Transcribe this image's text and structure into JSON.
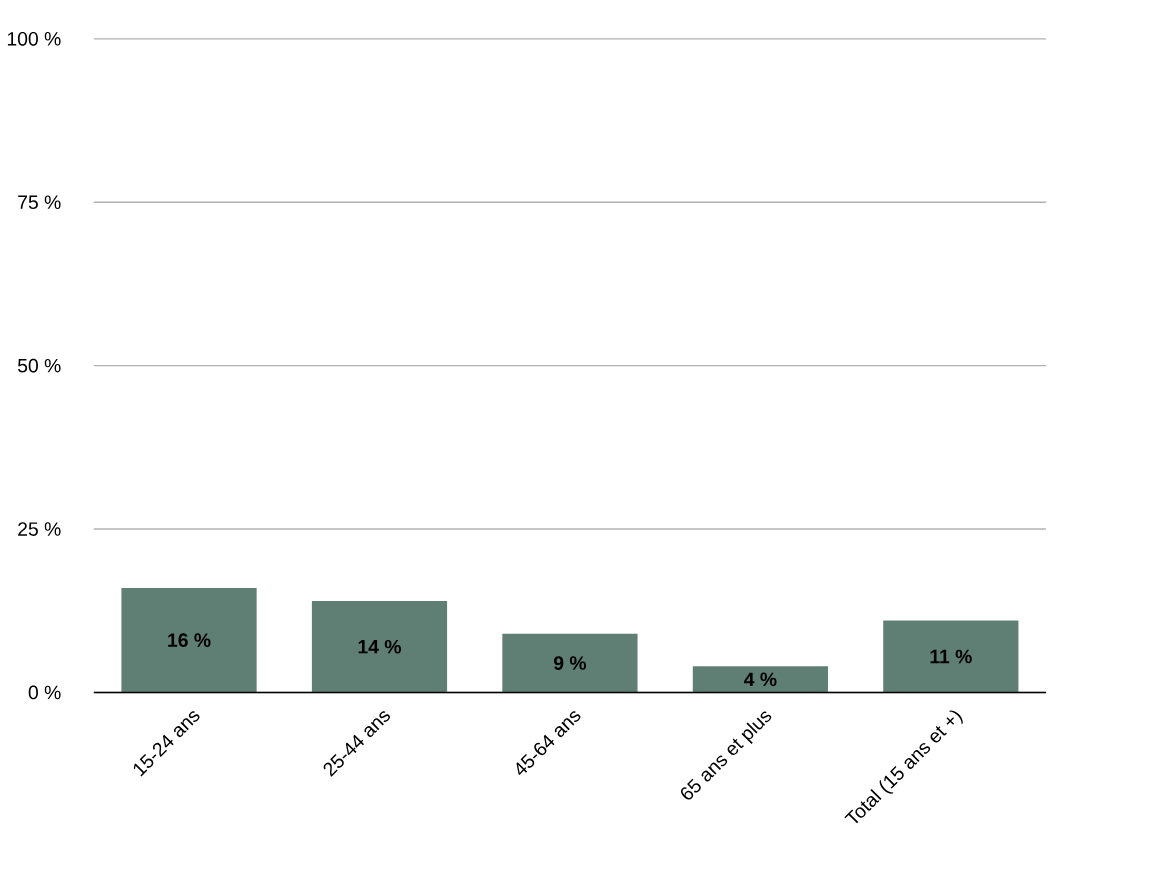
{
  "chart_data": {
    "type": "bar",
    "categories": [
      "15-24 ans",
      "25-44 ans",
      "45-64 ans",
      "65 ans et plus",
      "Total (15 ans et +)"
    ],
    "values": [
      16,
      14,
      9,
      4,
      11
    ],
    "value_labels": [
      "16 %",
      "14 %",
      "9 %",
      "4 %",
      "11 %"
    ],
    "color": "#5f7f74",
    "ylim": [
      0,
      100
    ],
    "yticks": [
      {
        "value": 0,
        "label": "0 %"
      },
      {
        "value": 25,
        "label": "25 %"
      },
      {
        "value": 50,
        "label": "50 %"
      },
      {
        "value": 75,
        "label": "75 %"
      },
      {
        "value": 100,
        "label": "100 %"
      }
    ],
    "grid": "y"
  }
}
